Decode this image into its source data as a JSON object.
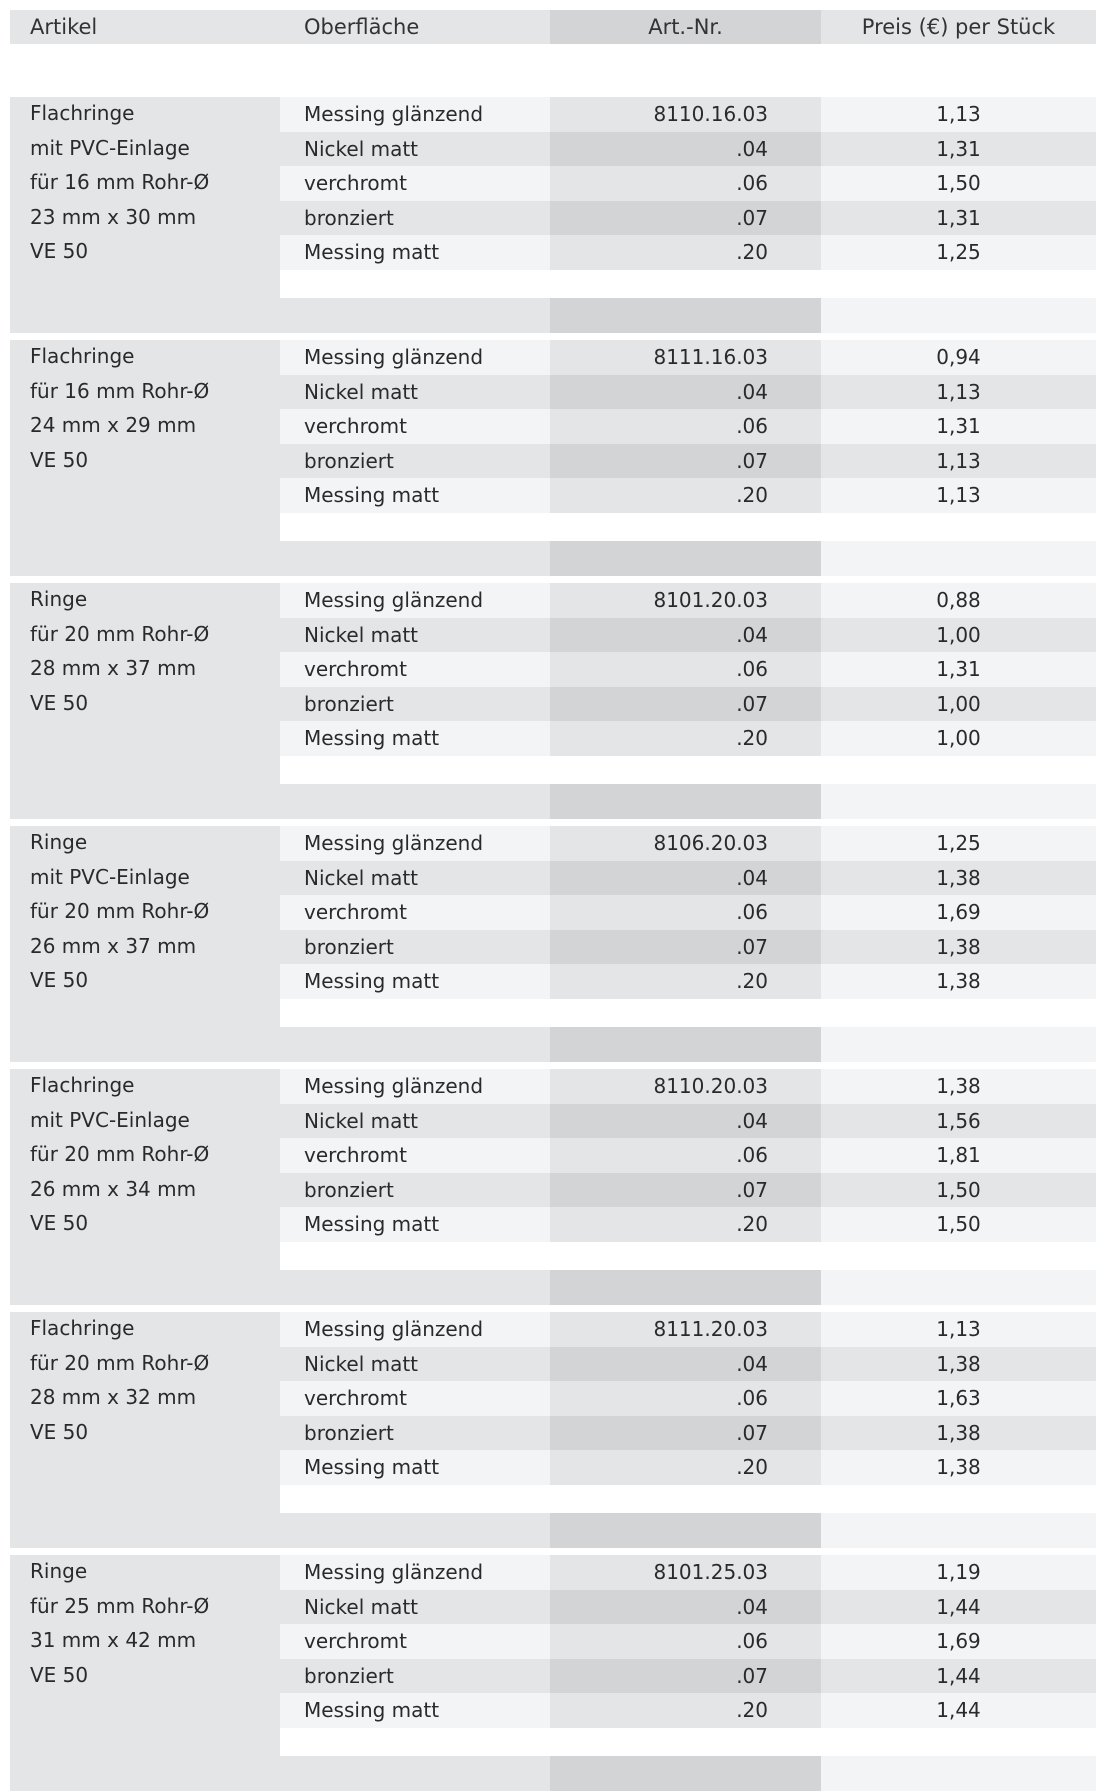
{
  "header": {
    "artikel": "Artikel",
    "oberflaeche": "Oberfläche",
    "art_nr": "Art.-Nr.",
    "preis": "Preis (€) per Stück"
  },
  "groups": [
    {
      "article": [
        "Flachringe",
        "mit PVC-Einlage",
        "für 16 mm Rohr-Ø",
        "23 mm x 30 mm",
        "VE 50"
      ],
      "rows": [
        {
          "finish": "Messing glänzend",
          "nr": "8110.16.03",
          "price": "1,13"
        },
        {
          "finish": "Nickel matt",
          "nr": ".04",
          "price": "1,31"
        },
        {
          "finish": "verchromt",
          "nr": ".06",
          "price": "1,50"
        },
        {
          "finish": "bronziert",
          "nr": ".07",
          "price": "1,31"
        },
        {
          "finish": "Messing matt",
          "nr": ".20",
          "price": "1,25"
        }
      ]
    },
    {
      "article": [
        "Flachringe",
        "für 16 mm Rohr-Ø",
        "24 mm x 29 mm",
        "VE 50"
      ],
      "rows": [
        {
          "finish": "Messing glänzend",
          "nr": "8111.16.03",
          "price": "0,94"
        },
        {
          "finish": "Nickel matt",
          "nr": ".04",
          "price": "1,13"
        },
        {
          "finish": "verchromt",
          "nr": ".06",
          "price": "1,31"
        },
        {
          "finish": "bronziert",
          "nr": ".07",
          "price": "1,13"
        },
        {
          "finish": "Messing matt",
          "nr": ".20",
          "price": "1,13"
        }
      ]
    },
    {
      "article": [
        "Ringe",
        "für 20 mm Rohr-Ø",
        "28 mm x 37 mm",
        "VE 50"
      ],
      "rows": [
        {
          "finish": "Messing glänzend",
          "nr": "8101.20.03",
          "price": "0,88"
        },
        {
          "finish": "Nickel matt",
          "nr": ".04",
          "price": "1,00"
        },
        {
          "finish": "verchromt",
          "nr": ".06",
          "price": "1,31"
        },
        {
          "finish": "bronziert",
          "nr": ".07",
          "price": "1,00"
        },
        {
          "finish": "Messing matt",
          "nr": ".20",
          "price": "1,00"
        }
      ]
    },
    {
      "article": [
        "Ringe",
        "mit PVC-Einlage",
        "für 20 mm Rohr-Ø",
        "26 mm x 37 mm",
        "VE 50"
      ],
      "rows": [
        {
          "finish": "Messing glänzend",
          "nr": "8106.20.03",
          "price": "1,25"
        },
        {
          "finish": "Nickel matt",
          "nr": ".04",
          "price": "1,38"
        },
        {
          "finish": "verchromt",
          "nr": ".06",
          "price": "1,69"
        },
        {
          "finish": "bronziert",
          "nr": ".07",
          "price": "1,38"
        },
        {
          "finish": "Messing matt",
          "nr": ".20",
          "price": "1,38"
        }
      ]
    },
    {
      "article": [
        "Flachringe",
        "mit PVC-Einlage",
        "für 20 mm Rohr-Ø",
        "26 mm x 34 mm",
        "VE 50"
      ],
      "rows": [
        {
          "finish": "Messing glänzend",
          "nr": "8110.20.03",
          "price": "1,38"
        },
        {
          "finish": "Nickel matt",
          "nr": ".04",
          "price": "1,56"
        },
        {
          "finish": "verchromt",
          "nr": ".06",
          "price": "1,81"
        },
        {
          "finish": "bronziert",
          "nr": ".07",
          "price": "1,50"
        },
        {
          "finish": "Messing matt",
          "nr": ".20",
          "price": "1,50"
        }
      ]
    },
    {
      "article": [
        "Flachringe",
        "für 20 mm Rohr-Ø",
        "28 mm x 32 mm",
        "VE 50"
      ],
      "rows": [
        {
          "finish": "Messing glänzend",
          "nr": "8111.20.03",
          "price": "1,13"
        },
        {
          "finish": "Nickel matt",
          "nr": ".04",
          "price": "1,38"
        },
        {
          "finish": "verchromt",
          "nr": ".06",
          "price": "1,63"
        },
        {
          "finish": "bronziert",
          "nr": ".07",
          "price": "1,38"
        },
        {
          "finish": "Messing matt",
          "nr": ".20",
          "price": "1,38"
        }
      ]
    },
    {
      "article": [
        "Ringe",
        "für 25 mm Rohr-Ø",
        "31 mm x 42 mm",
        "VE 50"
      ],
      "rows": [
        {
          "finish": "Messing glänzend",
          "nr": "8101.25.03",
          "price": "1,19"
        },
        {
          "finish": "Nickel matt",
          "nr": ".04",
          "price": "1,44"
        },
        {
          "finish": "verchromt",
          "nr": ".06",
          "price": "1,69"
        },
        {
          "finish": "bronziert",
          "nr": ".07",
          "price": "1,44"
        },
        {
          "finish": "Messing matt",
          "nr": ".20",
          "price": "1,44"
        }
      ]
    }
  ]
}
